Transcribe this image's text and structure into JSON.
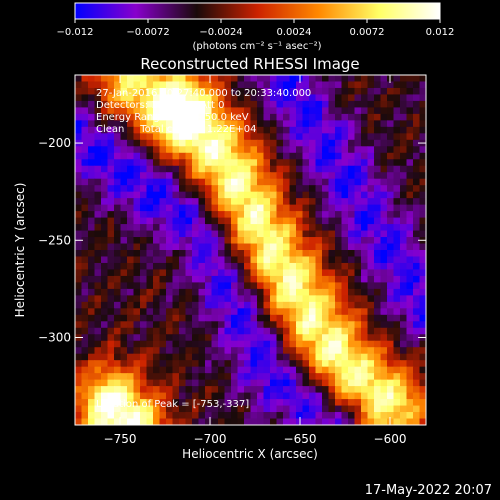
{
  "chart_data": {
    "type": "heatmap",
    "title": "Reconstructed RHESSI Image",
    "xlabel": "Heliocentric X (arcsec)",
    "ylabel": "Heliocentric Y (arcsec)",
    "xlim": [
      -775,
      -580
    ],
    "ylim": [
      -345,
      -165
    ],
    "x_ticks": [
      -750,
      -700,
      -650,
      -600
    ],
    "x_tick_labels": [
      "−750",
      "−700",
      "−650",
      "−600"
    ],
    "y_ticks": [
      -200,
      -250,
      -300
    ],
    "y_tick_labels": [
      "−200",
      "−250",
      "−300"
    ],
    "colorbar": {
      "range": [
        -0.012,
        0.012
      ],
      "ticks": [
        -0.012,
        -0.0072,
        -0.0024,
        0.0024,
        0.0072,
        0.012
      ],
      "tick_labels": [
        "−0.012",
        "−0.0072",
        "−0.0024",
        "0.0024",
        "0.0072",
        "0.012"
      ],
      "units_label": "(photons cm⁻² s⁻¹ asec⁻²)",
      "stops": [
        "#0000ff",
        "#8800cc",
        "#1a0a0a",
        "#cc2200",
        "#ff8800",
        "#ffff66",
        "#ffffff"
      ]
    },
    "annotations": [
      "27-Jan-2016 20:27:40.000 to 20:33:40.000",
      "Detectors: 1F 5F 7F, Att 0",
      "Energy Range: 25.0 - 50.0 keV",
      "Clean     Total counts: 1.22E+04",
      "Location of Peak = [-753,-337]"
    ],
    "bright_ridges": [
      {
        "x": [
          -710,
          -690,
          -668,
          -645,
          -625,
          -600
        ],
        "y": [
          -188,
          -212,
          -252,
          -288,
          -315,
          -335
        ],
        "peak": 0.0095
      },
      {
        "x": [
          -755,
          -745
        ],
        "y": [
          -335,
          -345
        ],
        "peak": 0.012
      },
      {
        "x": [
          -745,
          -725
        ],
        "y": [
          -168,
          -180
        ],
        "peak": 0.007
      }
    ],
    "dark_lanes": [
      {
        "x": [
          -775,
          -705,
          -665,
          -630
        ],
        "y": [
          -195,
          -245,
          -320,
          -345
        ],
        "depth": -0.011
      },
      {
        "x": [
          -660,
          -580
        ],
        "y": [
          -165,
          -285
        ],
        "depth": -0.0105
      }
    ]
  },
  "footer": {
    "date": "17-May-2022 20:07"
  }
}
